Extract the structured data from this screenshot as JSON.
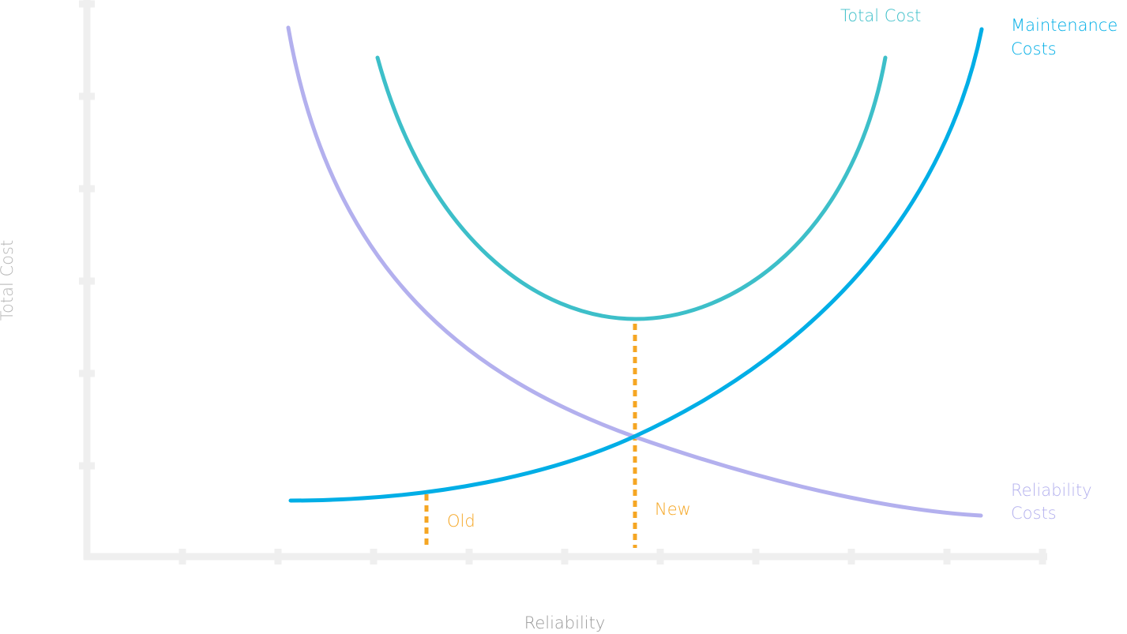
{
  "axes": {
    "x_label": "Reliability",
    "y_label": "Total Cost"
  },
  "curves": [
    {
      "label": [
        "Total Cost"
      ]
    },
    {
      "label": [
        "Maintenance",
        "Costs"
      ]
    },
    {
      "label": [
        "Reliability",
        "Costs"
      ]
    }
  ],
  "markers": [
    {
      "label": "Old"
    },
    {
      "label": "New"
    }
  ]
}
